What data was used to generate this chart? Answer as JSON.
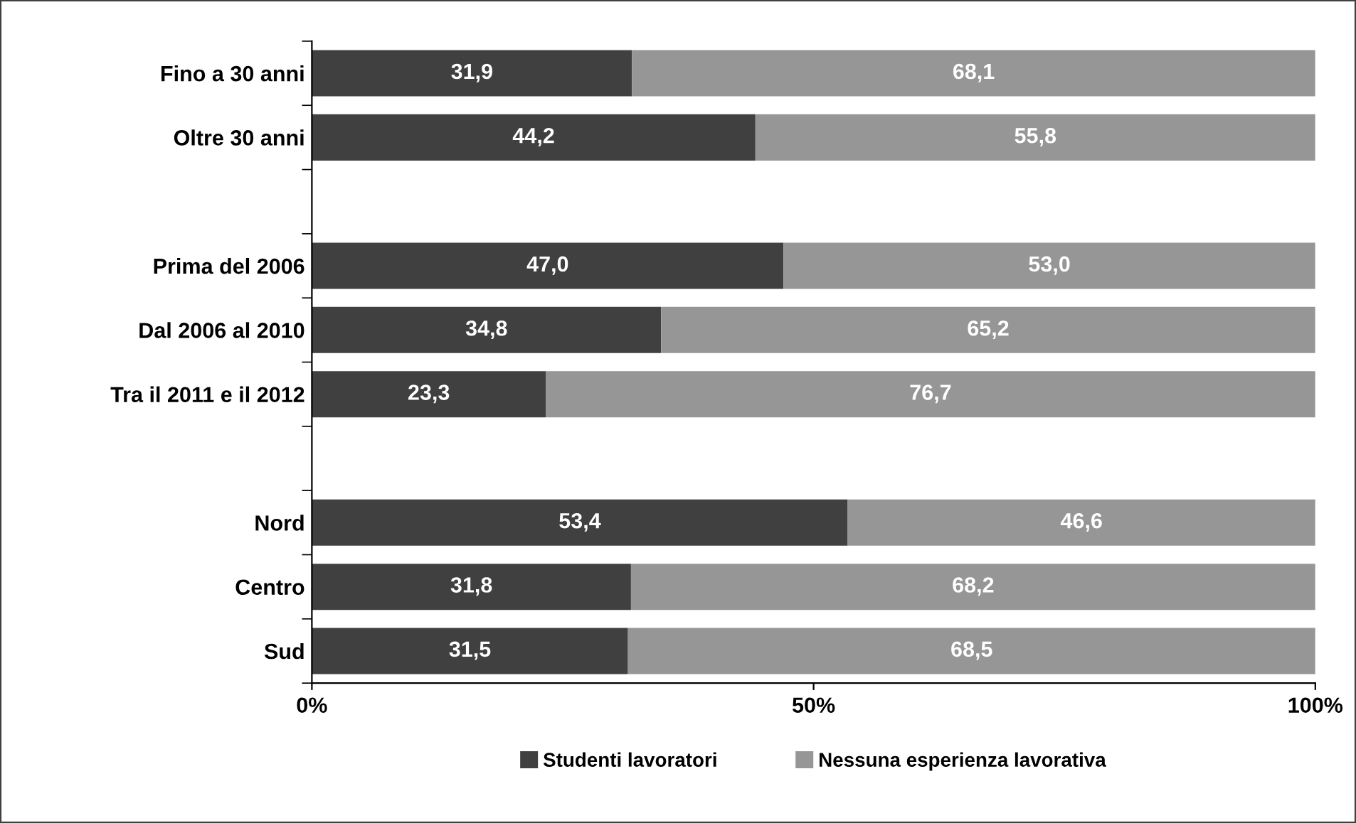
{
  "chart_data": {
    "type": "bar",
    "orientation": "horizontal",
    "stacked": true,
    "categories": [
      "Fino a 30 anni",
      "Oltre 30 anni",
      null,
      "Prima del 2006",
      "Dal 2006 al 2010",
      "Tra il 2011 e il 2012",
      null,
      "Nord",
      "Centro",
      "Sud"
    ],
    "series": [
      {
        "name": "Studenti lavoratori",
        "color": "#404040",
        "values": [
          31.9,
          44.2,
          null,
          47.0,
          34.8,
          23.3,
          null,
          53.4,
          31.8,
          31.5
        ],
        "value_labels": [
          "31,9",
          "44,2",
          null,
          "47,0",
          "34,8",
          "23,3",
          null,
          "53,4",
          "31,8",
          "31,5"
        ]
      },
      {
        "name": "Nessuna esperienza lavorativa",
        "color": "#969696",
        "values": [
          68.1,
          55.8,
          null,
          53.0,
          65.2,
          76.7,
          null,
          46.6,
          68.2,
          68.5
        ],
        "value_labels": [
          "68,1",
          "55,8",
          null,
          "53,0",
          "65,2",
          "76,7",
          null,
          "46,6",
          "68,2",
          "68,5"
        ]
      }
    ],
    "xlim": [
      0,
      100
    ],
    "xticks": [
      {
        "value": 0,
        "label": "0%"
      },
      {
        "value": 50,
        "label": "50%"
      },
      {
        "value": 100,
        "label": "100%"
      }
    ],
    "grid": false,
    "legend": "bottom"
  }
}
